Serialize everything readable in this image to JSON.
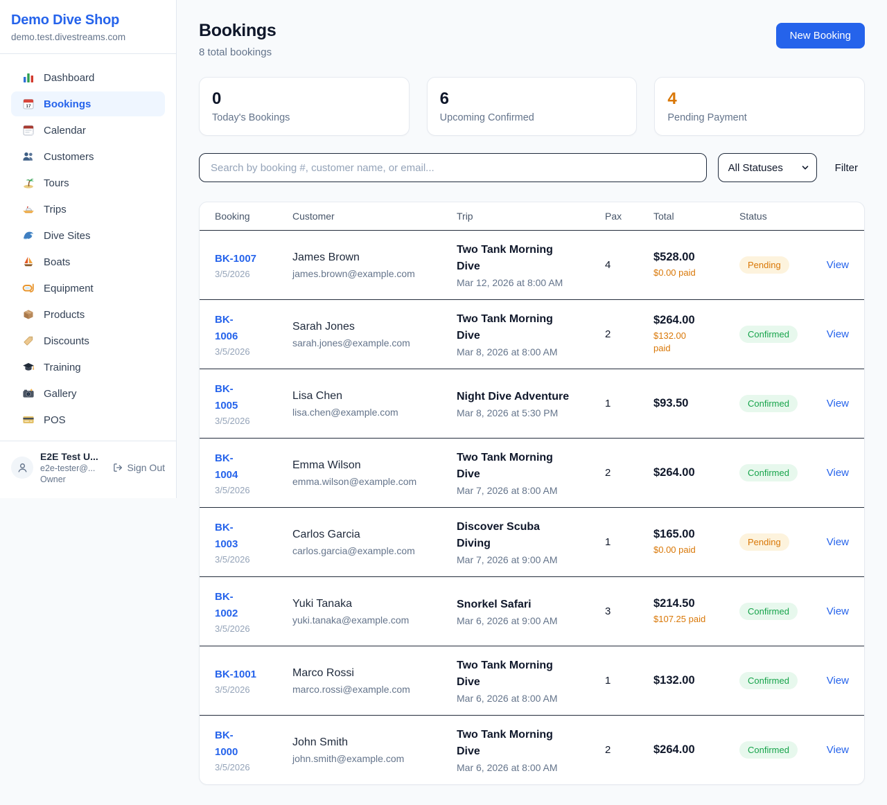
{
  "sidebar": {
    "brand": {
      "name": "Demo Dive Shop",
      "domain": "demo.test.divestreams.com"
    },
    "nav": [
      {
        "label": "Dashboard",
        "icon": "bar-chart-icon",
        "active": false
      },
      {
        "label": "Bookings",
        "icon": "bookings-calendar-icon",
        "active": true
      },
      {
        "label": "Calendar",
        "icon": "calendar-icon",
        "active": false
      },
      {
        "label": "Customers",
        "icon": "people-icon",
        "active": false
      },
      {
        "label": "Tours",
        "icon": "island-icon",
        "active": false
      },
      {
        "label": "Trips",
        "icon": "speedboat-icon",
        "active": false
      },
      {
        "label": "Dive Sites",
        "icon": "wave-icon",
        "active": false
      },
      {
        "label": "Boats",
        "icon": "sailboat-icon",
        "active": false
      },
      {
        "label": "Equipment",
        "icon": "diving-mask-icon",
        "active": false
      },
      {
        "label": "Products",
        "icon": "package-icon",
        "active": false
      },
      {
        "label": "Discounts",
        "icon": "tag-icon",
        "active": false
      },
      {
        "label": "Training",
        "icon": "graduation-cap-icon",
        "active": false
      },
      {
        "label": "Gallery",
        "icon": "camera-icon",
        "active": false
      },
      {
        "label": "POS",
        "icon": "credit-card-icon",
        "active": false
      }
    ],
    "user": {
      "name": "E2E Test U...",
      "email": "e2e-tester@...",
      "role": "Owner",
      "sign_out_label": "Sign Out"
    }
  },
  "header": {
    "title": "Bookings",
    "subtitle": "8 total bookings",
    "new_booking_label": "New Booking"
  },
  "stats": [
    {
      "value": "0",
      "label": "Today's Bookings",
      "color": "#0f172a"
    },
    {
      "value": "6",
      "label": "Upcoming Confirmed",
      "color": "#0f172a"
    },
    {
      "value": "4",
      "label": "Pending Payment",
      "color": "#d97706"
    }
  ],
  "controls": {
    "search_placeholder": "Search by booking #, customer name, or email...",
    "status_filter_value": "All Statuses",
    "filter_label": "Filter"
  },
  "table": {
    "columns": [
      "Booking",
      "Customer",
      "Trip",
      "Pax",
      "Total",
      "Status"
    ],
    "view_label": "View",
    "rows": [
      {
        "number": "BK-1007",
        "date": "3/5/2026",
        "customer": "James Brown",
        "email": "james.brown@example.com",
        "trip": "Two Tank Morning\nDive",
        "trip_datetime": "Mar 12, 2026 at 8:00 AM",
        "pax": "4",
        "total": "$528.00",
        "paid": "$0.00 paid",
        "status": "Pending"
      },
      {
        "number": "BK-\n1006",
        "date": "3/5/2026",
        "customer": "Sarah Jones",
        "email": "sarah.jones@example.com",
        "trip": "Two Tank Morning\nDive",
        "trip_datetime": "Mar 8, 2026 at 8:00 AM",
        "pax": "2",
        "total": "$264.00",
        "paid": "$132.00\npaid",
        "status": "Confirmed"
      },
      {
        "number": "BK-\n1005",
        "date": "3/5/2026",
        "customer": "Lisa Chen",
        "email": "lisa.chen@example.com",
        "trip": "Night Dive Adventure",
        "trip_datetime": "Mar 8, 2026 at 5:30 PM",
        "pax": "1",
        "total": "$93.50",
        "paid": null,
        "status": "Confirmed"
      },
      {
        "number": "BK-\n1004",
        "date": "3/5/2026",
        "customer": "Emma Wilson",
        "email": "emma.wilson@example.com",
        "trip": "Two Tank Morning\nDive",
        "trip_datetime": "Mar 7, 2026 at 8:00 AM",
        "pax": "2",
        "total": "$264.00",
        "paid": null,
        "status": "Confirmed"
      },
      {
        "number": "BK-\n1003",
        "date": "3/5/2026",
        "customer": "Carlos Garcia",
        "email": "carlos.garcia@example.com",
        "trip": "Discover Scuba\nDiving",
        "trip_datetime": "Mar 7, 2026 at 9:00 AM",
        "pax": "1",
        "total": "$165.00",
        "paid": "$0.00 paid",
        "status": "Pending"
      },
      {
        "number": "BK-\n1002",
        "date": "3/5/2026",
        "customer": "Yuki Tanaka",
        "email": "yuki.tanaka@example.com",
        "trip": "Snorkel Safari",
        "trip_datetime": "Mar 6, 2026 at 9:00 AM",
        "pax": "3",
        "total": "$214.50",
        "paid": "$107.25 paid",
        "status": "Confirmed"
      },
      {
        "number": "BK-1001",
        "date": "3/5/2026",
        "customer": "Marco Rossi",
        "email": "marco.rossi@example.com",
        "trip": "Two Tank Morning\nDive",
        "trip_datetime": "Mar 6, 2026 at 8:00 AM",
        "pax": "1",
        "total": "$132.00",
        "paid": null,
        "status": "Confirmed"
      },
      {
        "number": "BK-\n1000",
        "date": "3/5/2026",
        "customer": "John Smith",
        "email": "john.smith@example.com",
        "trip": "Two Tank Morning\nDive",
        "trip_datetime": "Mar 6, 2026 at 8:00 AM",
        "pax": "2",
        "total": "$264.00",
        "paid": null,
        "status": "Confirmed"
      }
    ]
  },
  "colors": {
    "accent_blue": "#2563eb",
    "pending_orange": "#d97706",
    "pending_badge_bg": "#fdf3dd",
    "confirmed_green": "#16a34a",
    "confirmed_badge_bg": "#e7f8ed",
    "page_bg": "#f8fafc",
    "dark_border": "#222b3a"
  }
}
